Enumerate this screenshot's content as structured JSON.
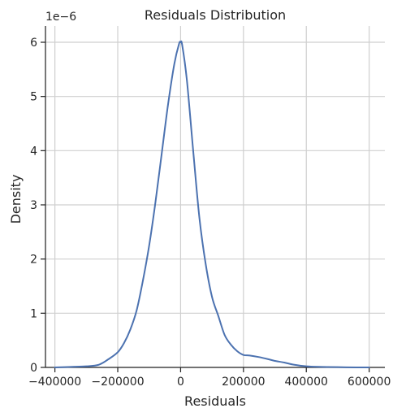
{
  "chart_data": {
    "type": "line",
    "title": "Residuals Distribution",
    "xlabel": "Residuals",
    "ylabel": "Density",
    "y_exponent_label": "1e−6",
    "xlim": [
      -430000,
      650000
    ],
    "ylim": [
      0,
      6.3
    ],
    "x_ticks": [
      -400000,
      -200000,
      0,
      200000,
      400000,
      600000
    ],
    "x_tick_labels": [
      "−400000",
      "−200000",
      "0",
      "200000",
      "400000",
      "600000"
    ],
    "y_ticks": [
      0,
      1,
      2,
      3,
      4,
      5,
      6
    ],
    "y_tick_labels": [
      "0",
      "1",
      "2",
      "3",
      "4",
      "5",
      "6"
    ],
    "grid": true,
    "colors": {
      "line": "#4c72b0",
      "grid": "#cfcfcf",
      "text": "#262626"
    },
    "series": [
      {
        "x": [
          -400000,
          -350000,
          -300000,
          -260000,
          -230000,
          -200000,
          -180000,
          -160000,
          -140000,
          -120000,
          -100000,
          -80000,
          -60000,
          -40000,
          -20000,
          -5000,
          0,
          5000,
          20000,
          40000,
          60000,
          80000,
          100000,
          120000,
          140000,
          160000,
          180000,
          200000,
          220000,
          250000,
          280000,
          300000,
          330000,
          360000,
          400000,
          450000,
          500000,
          560000,
          600000
        ],
        "y": [
          0.0,
          0.01,
          0.02,
          0.05,
          0.15,
          0.28,
          0.45,
          0.7,
          1.05,
          1.6,
          2.25,
          3.05,
          3.95,
          4.85,
          5.6,
          5.97,
          6.0,
          5.95,
          5.3,
          4.0,
          2.75,
          1.9,
          1.3,
          0.95,
          0.6,
          0.42,
          0.3,
          0.23,
          0.22,
          0.19,
          0.15,
          0.12,
          0.09,
          0.05,
          0.02,
          0.01,
          0.005,
          0.0,
          0.0
        ]
      }
    ]
  }
}
